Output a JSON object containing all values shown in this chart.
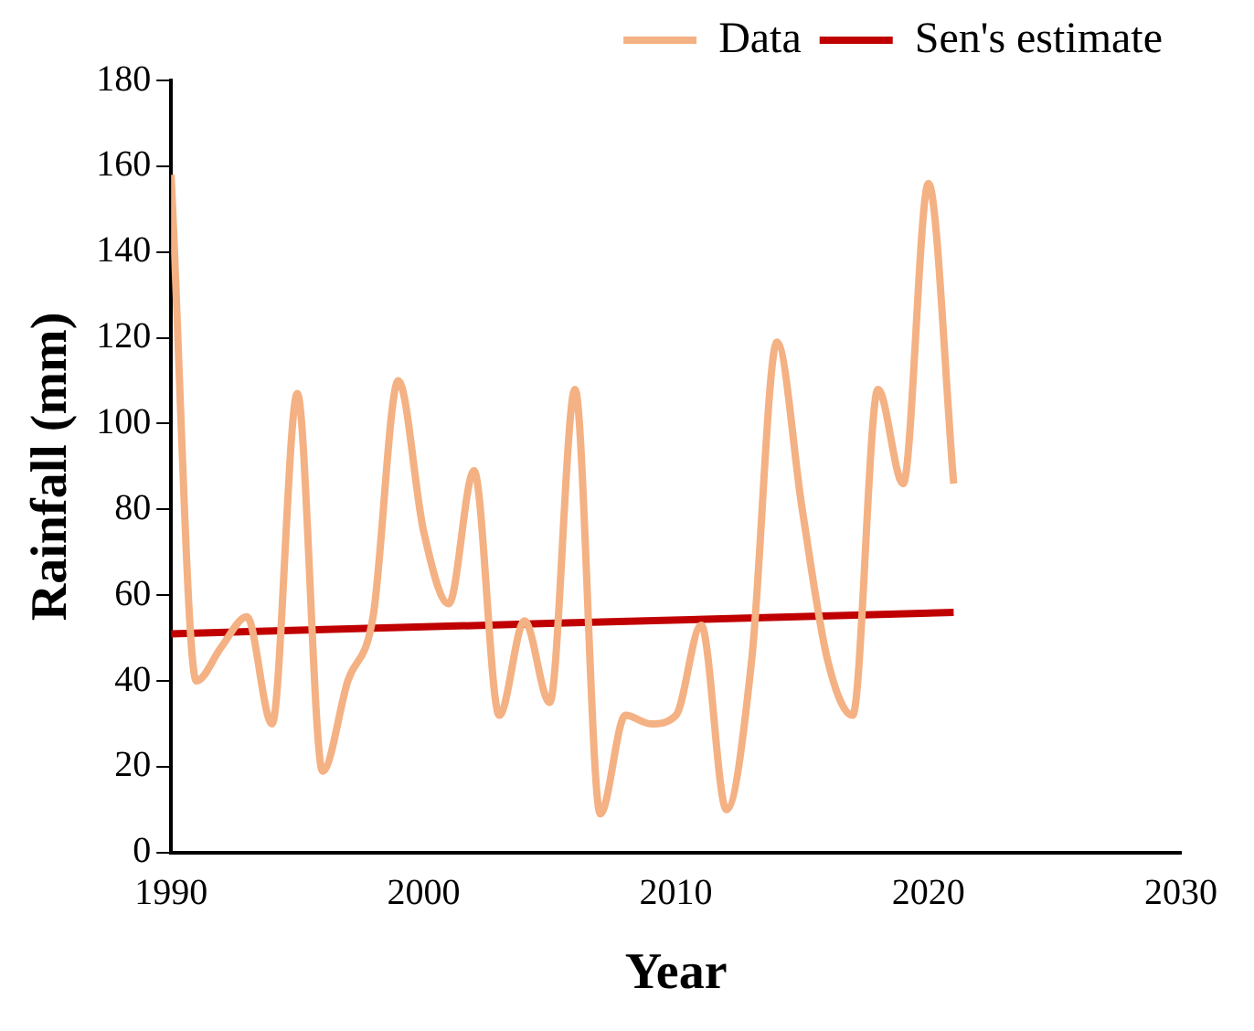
{
  "chart_data": {
    "type": "line",
    "xlabel": "Year",
    "ylabel": "Rainfall (mm)",
    "x": [
      1990,
      1991,
      1992,
      1993,
      1994,
      1995,
      1996,
      1997,
      1998,
      1999,
      2000,
      2001,
      2002,
      2003,
      2004,
      2005,
      2006,
      2007,
      2008,
      2009,
      2010,
      2011,
      2012,
      2013,
      2014,
      2015,
      2016,
      2017,
      2018,
      2019,
      2020,
      2021
    ],
    "series": [
      {
        "name": "Data",
        "color": "#f4b183",
        "values": [
          158,
          40,
          48,
          55,
          30,
          107,
          19,
          40,
          55,
          110,
          75,
          58,
          89,
          32,
          54,
          35,
          108,
          9,
          32,
          30,
          32,
          53,
          10,
          45,
          119,
          80,
          45,
          32,
          108,
          86,
          156,
          86
        ]
      },
      {
        "name": "Sen's estimate",
        "color": "#c00000",
        "x": [
          1990,
          2021
        ],
        "values": [
          51,
          56
        ]
      }
    ],
    "xlim": [
      1990,
      2030
    ],
    "xticks": [
      1990,
      2000,
      2010,
      2020,
      2030
    ],
    "ylim": [
      0,
      180
    ],
    "yticks": [
      0,
      20,
      40,
      60,
      80,
      100,
      120,
      140,
      160,
      180
    ],
    "grid": false,
    "legend": "top right",
    "marker": "none",
    "line_style": "solid"
  }
}
